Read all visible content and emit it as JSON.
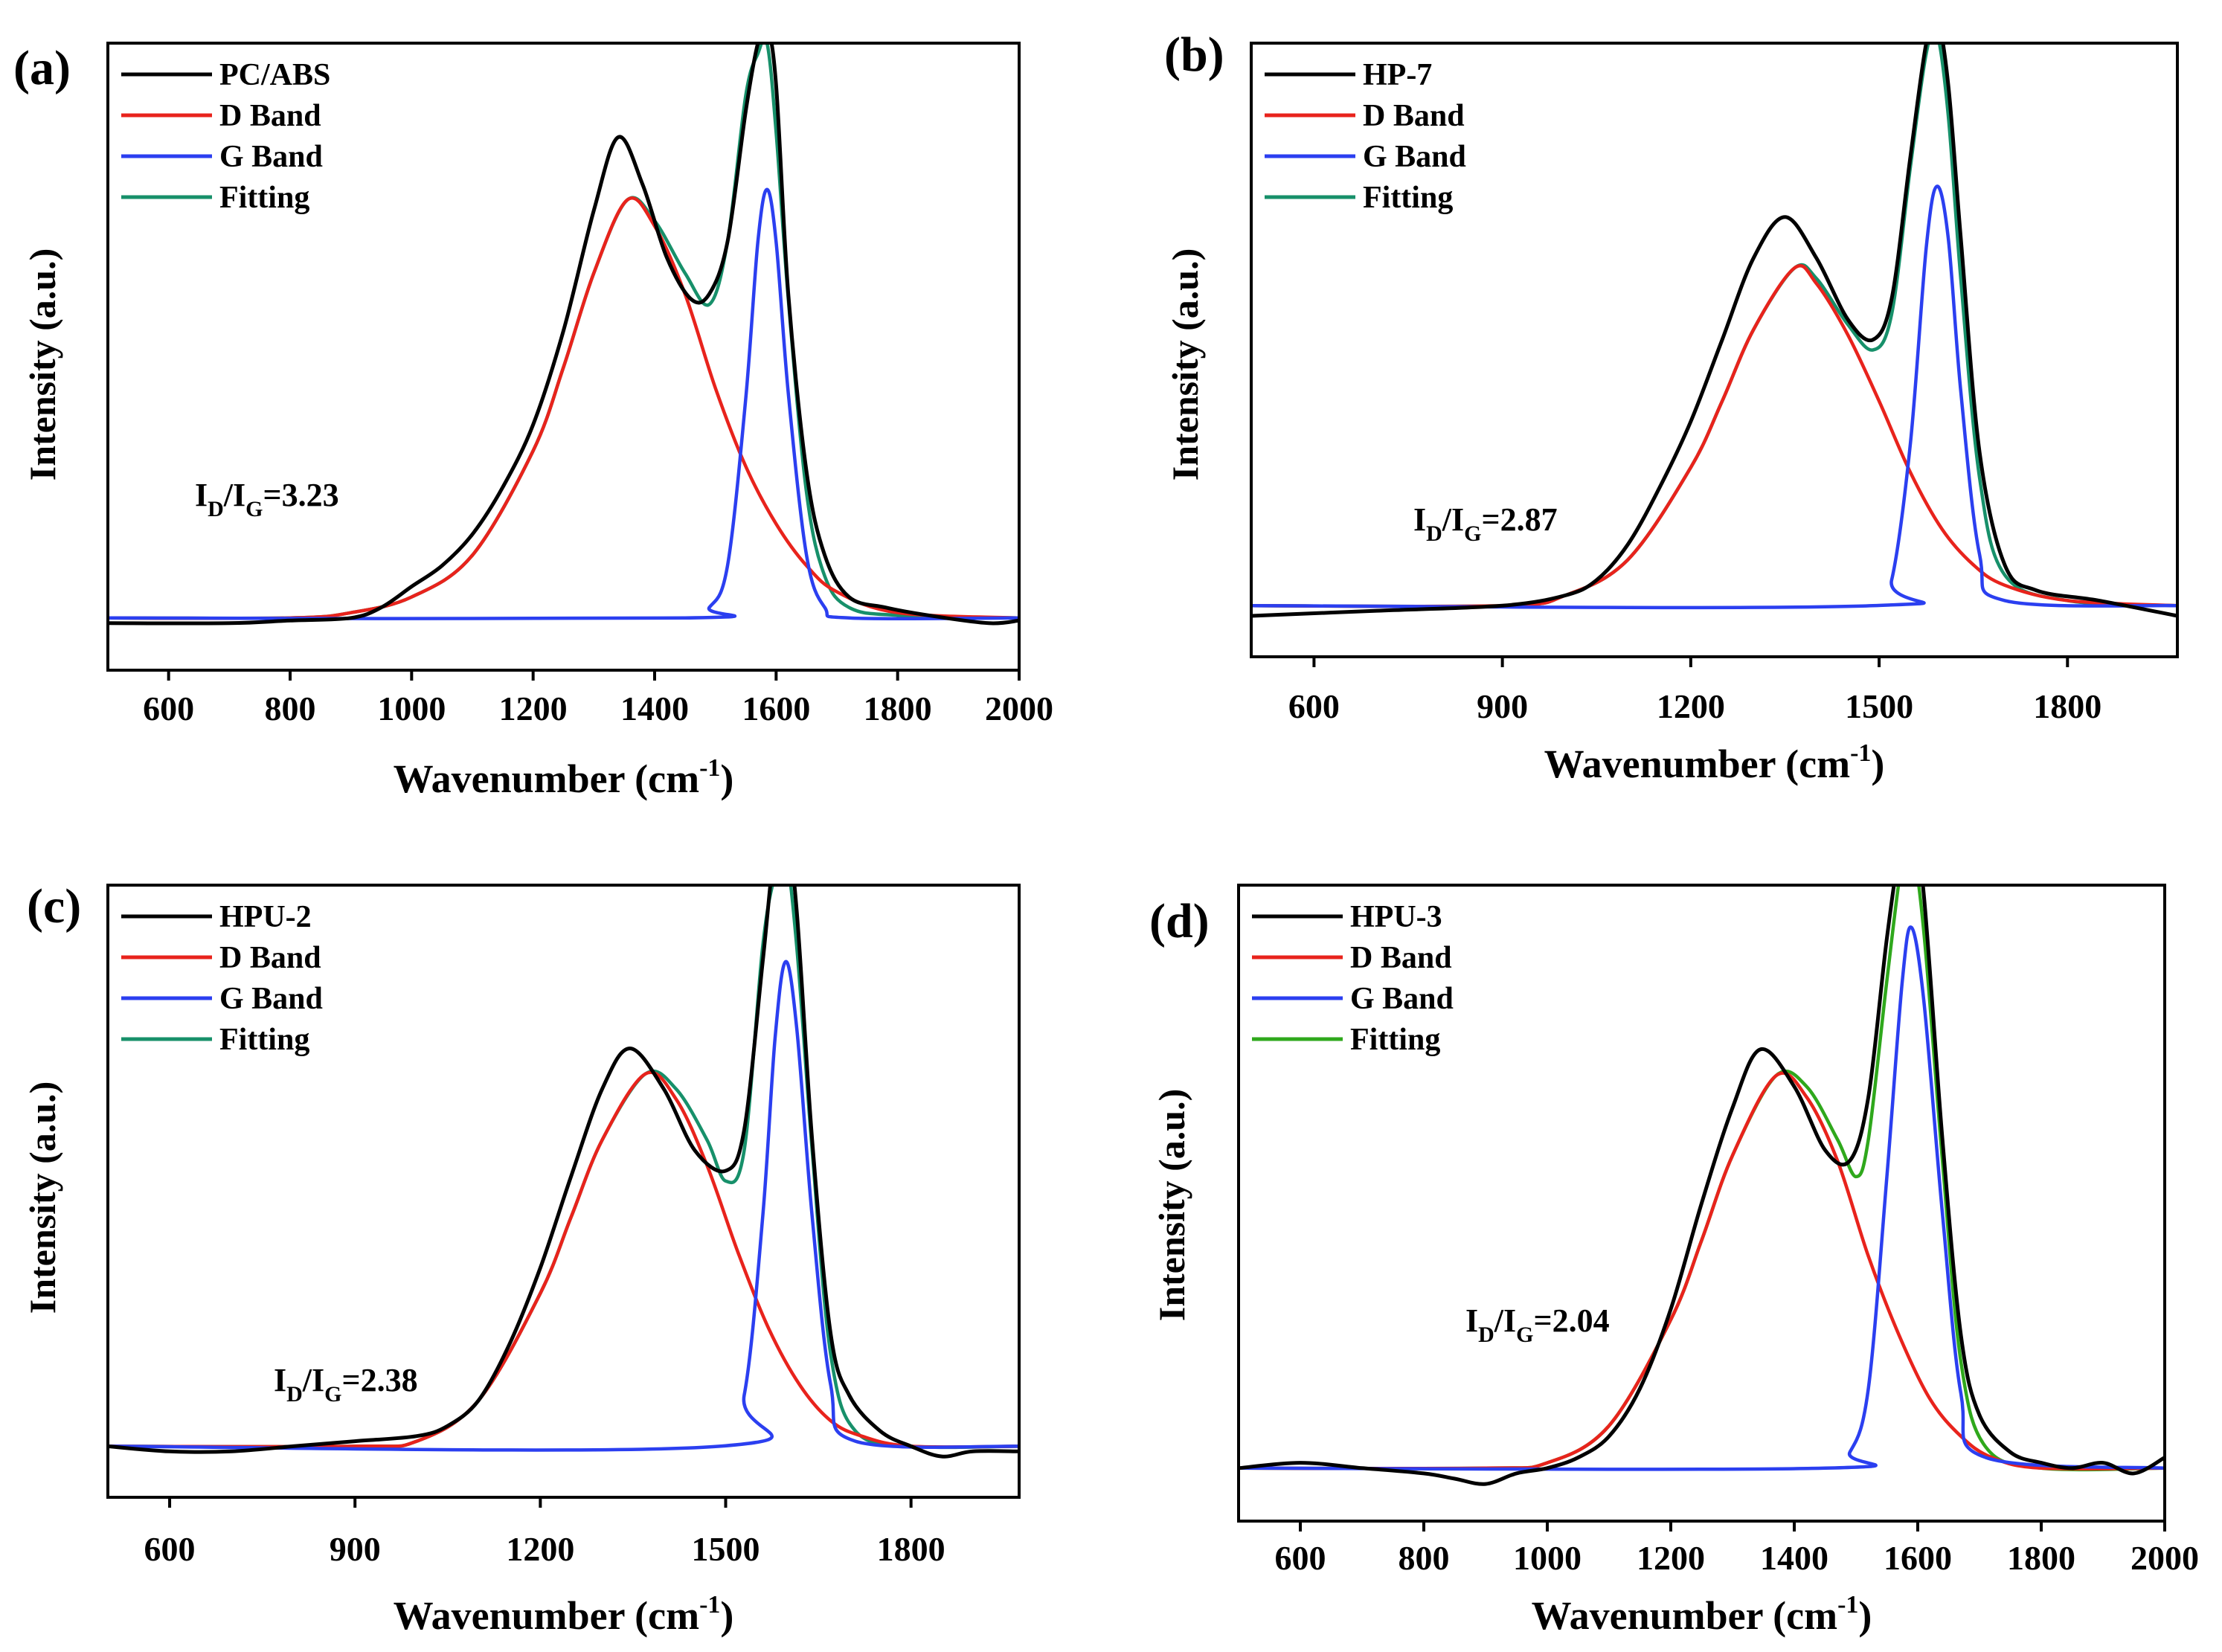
{
  "figure": {
    "panels": [
      {
        "label": "(a)",
        "ratio": {
          "base": "I",
          "sub1": "D",
          "slash": "/I",
          "sub2": "G",
          "value": "=3.23"
        },
        "legend": [
          "PC/ABS",
          "D Band",
          "G Band",
          "Fitting"
        ]
      },
      {
        "label": "(b)",
        "ratio": {
          "base": "I",
          "sub1": "D",
          "slash": "/I",
          "sub2": "G",
          "value": "=2.87"
        },
        "legend": [
          "HP-7",
          "D Band",
          "G Band",
          "Fitting"
        ]
      },
      {
        "label": "(c)",
        "ratio": {
          "base": "I",
          "sub1": "D",
          "slash": "/I",
          "sub2": "G",
          "value": "=2.38"
        },
        "legend": [
          "HPU-2",
          "D Band",
          "G Band",
          "Fitting"
        ]
      },
      {
        "label": "(d)",
        "ratio": {
          "base": "I",
          "sub1": "D",
          "slash": "/I",
          "sub2": "G",
          "value": "=2.04"
        },
        "legend": [
          "HPU-3",
          "D Band",
          "G Band",
          "Fitting"
        ]
      }
    ]
  },
  "chart_data": [
    {
      "type": "line",
      "panel": "(a)",
      "xlabel": "Wavenumber (cm",
      "xlabel_sup": "-1",
      "xlabel_end": ")",
      "ylabel": "Intensity (a.u.)",
      "xlim": [
        500,
        2000
      ],
      "ylim": [
        -0.1,
        1.1
      ],
      "xticks": [
        600,
        800,
        1000,
        1200,
        1400,
        1600,
        1800,
        2000
      ],
      "colors": {
        "data": "#000000",
        "d_band": "#e8231c",
        "g_band": "#2b3ff0",
        "fitting": "#17906a"
      },
      "legend_position": "top-left",
      "peaks": {
        "d_center": 1355,
        "d_width": 205,
        "d_amp": 0.8,
        "g_center": 1585,
        "g_width": 60,
        "g_amp": 0.82
      },
      "series": [
        {
          "name": "PC/ABS",
          "x": [
            500,
            700,
            800,
            900,
            950,
            1000,
            1050,
            1100,
            1150,
            1200,
            1250,
            1300,
            1340,
            1380,
            1420,
            1460,
            1490,
            1520,
            1550,
            1570,
            1585,
            1600,
            1620,
            1650,
            1680,
            1720,
            1780,
            1850,
            1950,
            2000
          ],
          "y": [
            -0.01,
            -0.01,
            -0.005,
            0.0,
            0.02,
            0.06,
            0.1,
            0.16,
            0.25,
            0.37,
            0.55,
            0.78,
            0.92,
            0.83,
            0.69,
            0.61,
            0.62,
            0.72,
            0.97,
            1.1,
            1.13,
            1.02,
            0.62,
            0.28,
            0.12,
            0.04,
            0.02,
            0.005,
            -0.01,
            -0.005
          ]
        },
        {
          "name": "D Band",
          "x": [
            500,
            800,
            900,
            1000,
            1100,
            1200,
            1250,
            1300,
            1355,
            1400,
            1450,
            1500,
            1550,
            1600,
            1650,
            1700,
            1800,
            2000
          ],
          "y": [
            0.0,
            0.0,
            0.01,
            0.04,
            0.12,
            0.32,
            0.48,
            0.66,
            0.8,
            0.75,
            0.62,
            0.44,
            0.29,
            0.18,
            0.1,
            0.05,
            0.01,
            0.0
          ]
        },
        {
          "name": "G Band",
          "x": [
            500,
            1450,
            1490,
            1520,
            1550,
            1570,
            1585,
            1600,
            1620,
            1650,
            1680,
            1720,
            2000
          ],
          "y": [
            0.0,
            0.0,
            0.02,
            0.1,
            0.42,
            0.72,
            0.82,
            0.72,
            0.43,
            0.12,
            0.02,
            0.0,
            0.0
          ]
        },
        {
          "name": "Fitting",
          "x": [
            500,
            800,
            900,
            1000,
            1100,
            1200,
            1250,
            1300,
            1355,
            1400,
            1450,
            1490,
            1520,
            1550,
            1570,
            1585,
            1600,
            1620,
            1650,
            1680,
            1720,
            1800,
            2000
          ],
          "y": [
            0.0,
            0.0,
            0.01,
            0.04,
            0.12,
            0.32,
            0.48,
            0.66,
            0.8,
            0.76,
            0.66,
            0.6,
            0.72,
            1.0,
            1.08,
            1.1,
            0.93,
            0.61,
            0.24,
            0.08,
            0.02,
            0.005,
            0.0
          ]
        }
      ]
    },
    {
      "type": "line",
      "panel": "(b)",
      "xlabel": "Wavenumber (cm",
      "xlabel_sup": "-1",
      "xlabel_end": ")",
      "ylabel": "Intensity (a.u.)",
      "xlim": [
        500,
        1975
      ],
      "ylim": [
        -0.1,
        1.1
      ],
      "xticks": [
        600,
        900,
        1200,
        1500,
        1800
      ],
      "colors": {
        "data": "#000000",
        "d_band": "#e8231c",
        "g_band": "#2b3ff0",
        "fitting": "#17906a"
      },
      "legend_position": "top-left",
      "peaks": {
        "d_center": 1365,
        "d_width": 190,
        "d_amp": 0.66,
        "g_center": 1592,
        "g_width": 50,
        "g_amp": 0.82
      },
      "series": [
        {
          "name": "HP-7",
          "x": [
            500,
            700,
            900,
            1000,
            1050,
            1100,
            1150,
            1200,
            1250,
            1300,
            1350,
            1400,
            1450,
            1490,
            1520,
            1550,
            1575,
            1592,
            1610,
            1630,
            1660,
            1700,
            1750,
            1850,
            1975
          ],
          "y": [
            -0.02,
            -0.01,
            0.0,
            0.02,
            0.05,
            0.12,
            0.23,
            0.36,
            0.52,
            0.68,
            0.76,
            0.68,
            0.56,
            0.52,
            0.6,
            0.88,
            1.1,
            1.15,
            1.02,
            0.72,
            0.3,
            0.08,
            0.03,
            0.01,
            -0.02
          ]
        },
        {
          "name": "D Band",
          "x": [
            500,
            900,
            1000,
            1100,
            1200,
            1250,
            1300,
            1365,
            1400,
            1450,
            1500,
            1550,
            1600,
            1650,
            1700,
            1800,
            1975
          ],
          "y": [
            0.0,
            0.0,
            0.02,
            0.09,
            0.27,
            0.4,
            0.54,
            0.66,
            0.63,
            0.53,
            0.4,
            0.26,
            0.15,
            0.08,
            0.04,
            0.01,
            0.0
          ]
        },
        {
          "name": "G Band",
          "x": [
            500,
            1490,
            1520,
            1550,
            1575,
            1592,
            1610,
            1630,
            1660,
            1700,
            1975
          ],
          "y": [
            0.0,
            0.0,
            0.05,
            0.32,
            0.7,
            0.82,
            0.72,
            0.42,
            0.1,
            0.01,
            0.0
          ]
        },
        {
          "name": "Fitting",
          "x": [
            500,
            900,
            1000,
            1100,
            1200,
            1250,
            1300,
            1365,
            1400,
            1450,
            1490,
            1520,
            1550,
            1575,
            1592,
            1610,
            1630,
            1660,
            1700,
            1800,
            1975
          ],
          "y": [
            0.0,
            0.0,
            0.02,
            0.09,
            0.27,
            0.4,
            0.54,
            0.66,
            0.64,
            0.55,
            0.5,
            0.57,
            0.86,
            1.08,
            1.12,
            0.96,
            0.64,
            0.25,
            0.06,
            0.01,
            0.0
          ]
        }
      ]
    },
    {
      "type": "line",
      "panel": "(c)",
      "xlabel": "Wavenumber (cm",
      "xlabel_sup": "-1",
      "xlabel_end": ")",
      "ylabel": "Intensity (a.u.)",
      "xlim": [
        500,
        1975
      ],
      "ylim": [
        -0.1,
        1.1
      ],
      "xticks": [
        600,
        900,
        1200,
        1500,
        1800
      ],
      "colors": {
        "data": "#000000",
        "d_band": "#e8231c",
        "g_band": "#2b3ff0",
        "fitting": "#17906a"
      },
      "legend_position": "top-left",
      "peaks": {
        "d_center": 1370,
        "d_width": 185,
        "d_amp": 0.73,
        "g_center": 1597,
        "g_width": 52,
        "g_amp": 0.95
      },
      "series": [
        {
          "name": "HPU-2",
          "x": [
            500,
            600,
            700,
            800,
            900,
            1000,
            1050,
            1100,
            1150,
            1200,
            1250,
            1300,
            1345,
            1400,
            1450,
            1500,
            1530,
            1560,
            1580,
            1597,
            1615,
            1640,
            1670,
            1700,
            1750,
            1800,
            1850,
            1900,
            1975
          ],
          "y": [
            0.0,
            -0.01,
            -0.01,
            0.0,
            0.01,
            0.02,
            0.04,
            0.09,
            0.2,
            0.35,
            0.53,
            0.7,
            0.78,
            0.7,
            0.58,
            0.54,
            0.62,
            0.95,
            1.18,
            1.22,
            1.05,
            0.6,
            0.22,
            0.1,
            0.03,
            0.0,
            -0.02,
            -0.01,
            -0.01
          ]
        },
        {
          "name": "D Band",
          "x": [
            500,
            900,
            1000,
            1100,
            1200,
            1250,
            1300,
            1370,
            1420,
            1470,
            1520,
            1570,
            1620,
            1670,
            1720,
            1800,
            1975
          ],
          "y": [
            0.0,
            0.0,
            0.01,
            0.09,
            0.3,
            0.45,
            0.6,
            0.73,
            0.68,
            0.55,
            0.38,
            0.23,
            0.12,
            0.05,
            0.02,
            0.0,
            0.0
          ]
        },
        {
          "name": "G Band",
          "x": [
            500,
            1490,
            1530,
            1560,
            1580,
            1597,
            1615,
            1640,
            1670,
            1710,
            1975
          ],
          "y": [
            0.0,
            0.0,
            0.1,
            0.45,
            0.8,
            0.95,
            0.82,
            0.45,
            0.12,
            0.01,
            0.0
          ]
        },
        {
          "name": "Fitting",
          "x": [
            500,
            900,
            1000,
            1100,
            1200,
            1250,
            1300,
            1370,
            1420,
            1470,
            1500,
            1530,
            1560,
            1580,
            1597,
            1615,
            1640,
            1670,
            1710,
            1800,
            1975
          ],
          "y": [
            0.0,
            0.0,
            0.01,
            0.09,
            0.3,
            0.45,
            0.6,
            0.73,
            0.7,
            0.6,
            0.52,
            0.58,
            0.98,
            1.12,
            1.16,
            0.98,
            0.58,
            0.18,
            0.03,
            0.0,
            0.0
          ]
        }
      ]
    },
    {
      "type": "line",
      "panel": "(d)",
      "xlabel": "Wavenumber (cm",
      "xlabel_sup": "-1",
      "xlabel_end": ")",
      "ylabel": "Intensity (a.u.)",
      "xlim": [
        500,
        2000
      ],
      "ylim": [
        -0.1,
        1.1
      ],
      "xticks": [
        600,
        800,
        1000,
        1200,
        1400,
        1600,
        1800,
        2000
      ],
      "colors": {
        "data": "#000000",
        "d_band": "#e8231c",
        "g_band": "#2b3ff0",
        "fitting": "#2fa81c"
      },
      "legend_position": "top-left",
      "peaks": {
        "d_center": 1370,
        "d_width": 190,
        "d_amp": 0.74,
        "g_center": 1590,
        "g_width": 55,
        "g_amp": 1.02
      },
      "series": [
        {
          "name": "HPU-3",
          "x": [
            500,
            600,
            700,
            800,
            850,
            900,
            950,
            1000,
            1050,
            1100,
            1150,
            1200,
            1250,
            1300,
            1345,
            1400,
            1450,
            1490,
            1520,
            1550,
            1575,
            1590,
            1610,
            1640,
            1670,
            1700,
            1750,
            1800,
            1850,
            1900,
            1950,
            2000
          ],
          "y": [
            0.0,
            0.01,
            0.0,
            -0.01,
            -0.02,
            -0.03,
            -0.01,
            0.0,
            0.02,
            0.06,
            0.15,
            0.3,
            0.5,
            0.68,
            0.79,
            0.72,
            0.6,
            0.58,
            0.7,
            1.0,
            1.2,
            1.24,
            1.08,
            0.62,
            0.25,
            0.1,
            0.03,
            0.01,
            0.0,
            0.01,
            -0.01,
            0.02
          ]
        },
        {
          "name": "D Band",
          "x": [
            500,
            900,
            1000,
            1100,
            1200,
            1250,
            1300,
            1370,
            1420,
            1470,
            1520,
            1570,
            1620,
            1670,
            1720,
            1800,
            2000
          ],
          "y": [
            0.0,
            0.0,
            0.01,
            0.08,
            0.28,
            0.43,
            0.59,
            0.74,
            0.7,
            0.58,
            0.4,
            0.25,
            0.13,
            0.06,
            0.02,
            0.0,
            0.0
          ]
        },
        {
          "name": "G Band",
          "x": [
            500,
            1450,
            1490,
            1520,
            1550,
            1575,
            1590,
            1610,
            1640,
            1670,
            1710,
            2000
          ],
          "y": [
            0.0,
            0.0,
            0.03,
            0.15,
            0.55,
            0.92,
            1.02,
            0.88,
            0.48,
            0.14,
            0.02,
            0.0
          ]
        },
        {
          "name": "Fitting",
          "x": [
            500,
            900,
            1000,
            1100,
            1200,
            1250,
            1300,
            1370,
            1420,
            1470,
            1500,
            1520,
            1550,
            1575,
            1590,
            1610,
            1640,
            1670,
            1710,
            1800,
            2000
          ],
          "y": [
            0.0,
            0.0,
            0.01,
            0.08,
            0.28,
            0.43,
            0.59,
            0.74,
            0.72,
            0.62,
            0.55,
            0.62,
            0.92,
            1.15,
            1.18,
            1.01,
            0.58,
            0.2,
            0.04,
            0.0,
            0.0
          ]
        }
      ]
    }
  ]
}
